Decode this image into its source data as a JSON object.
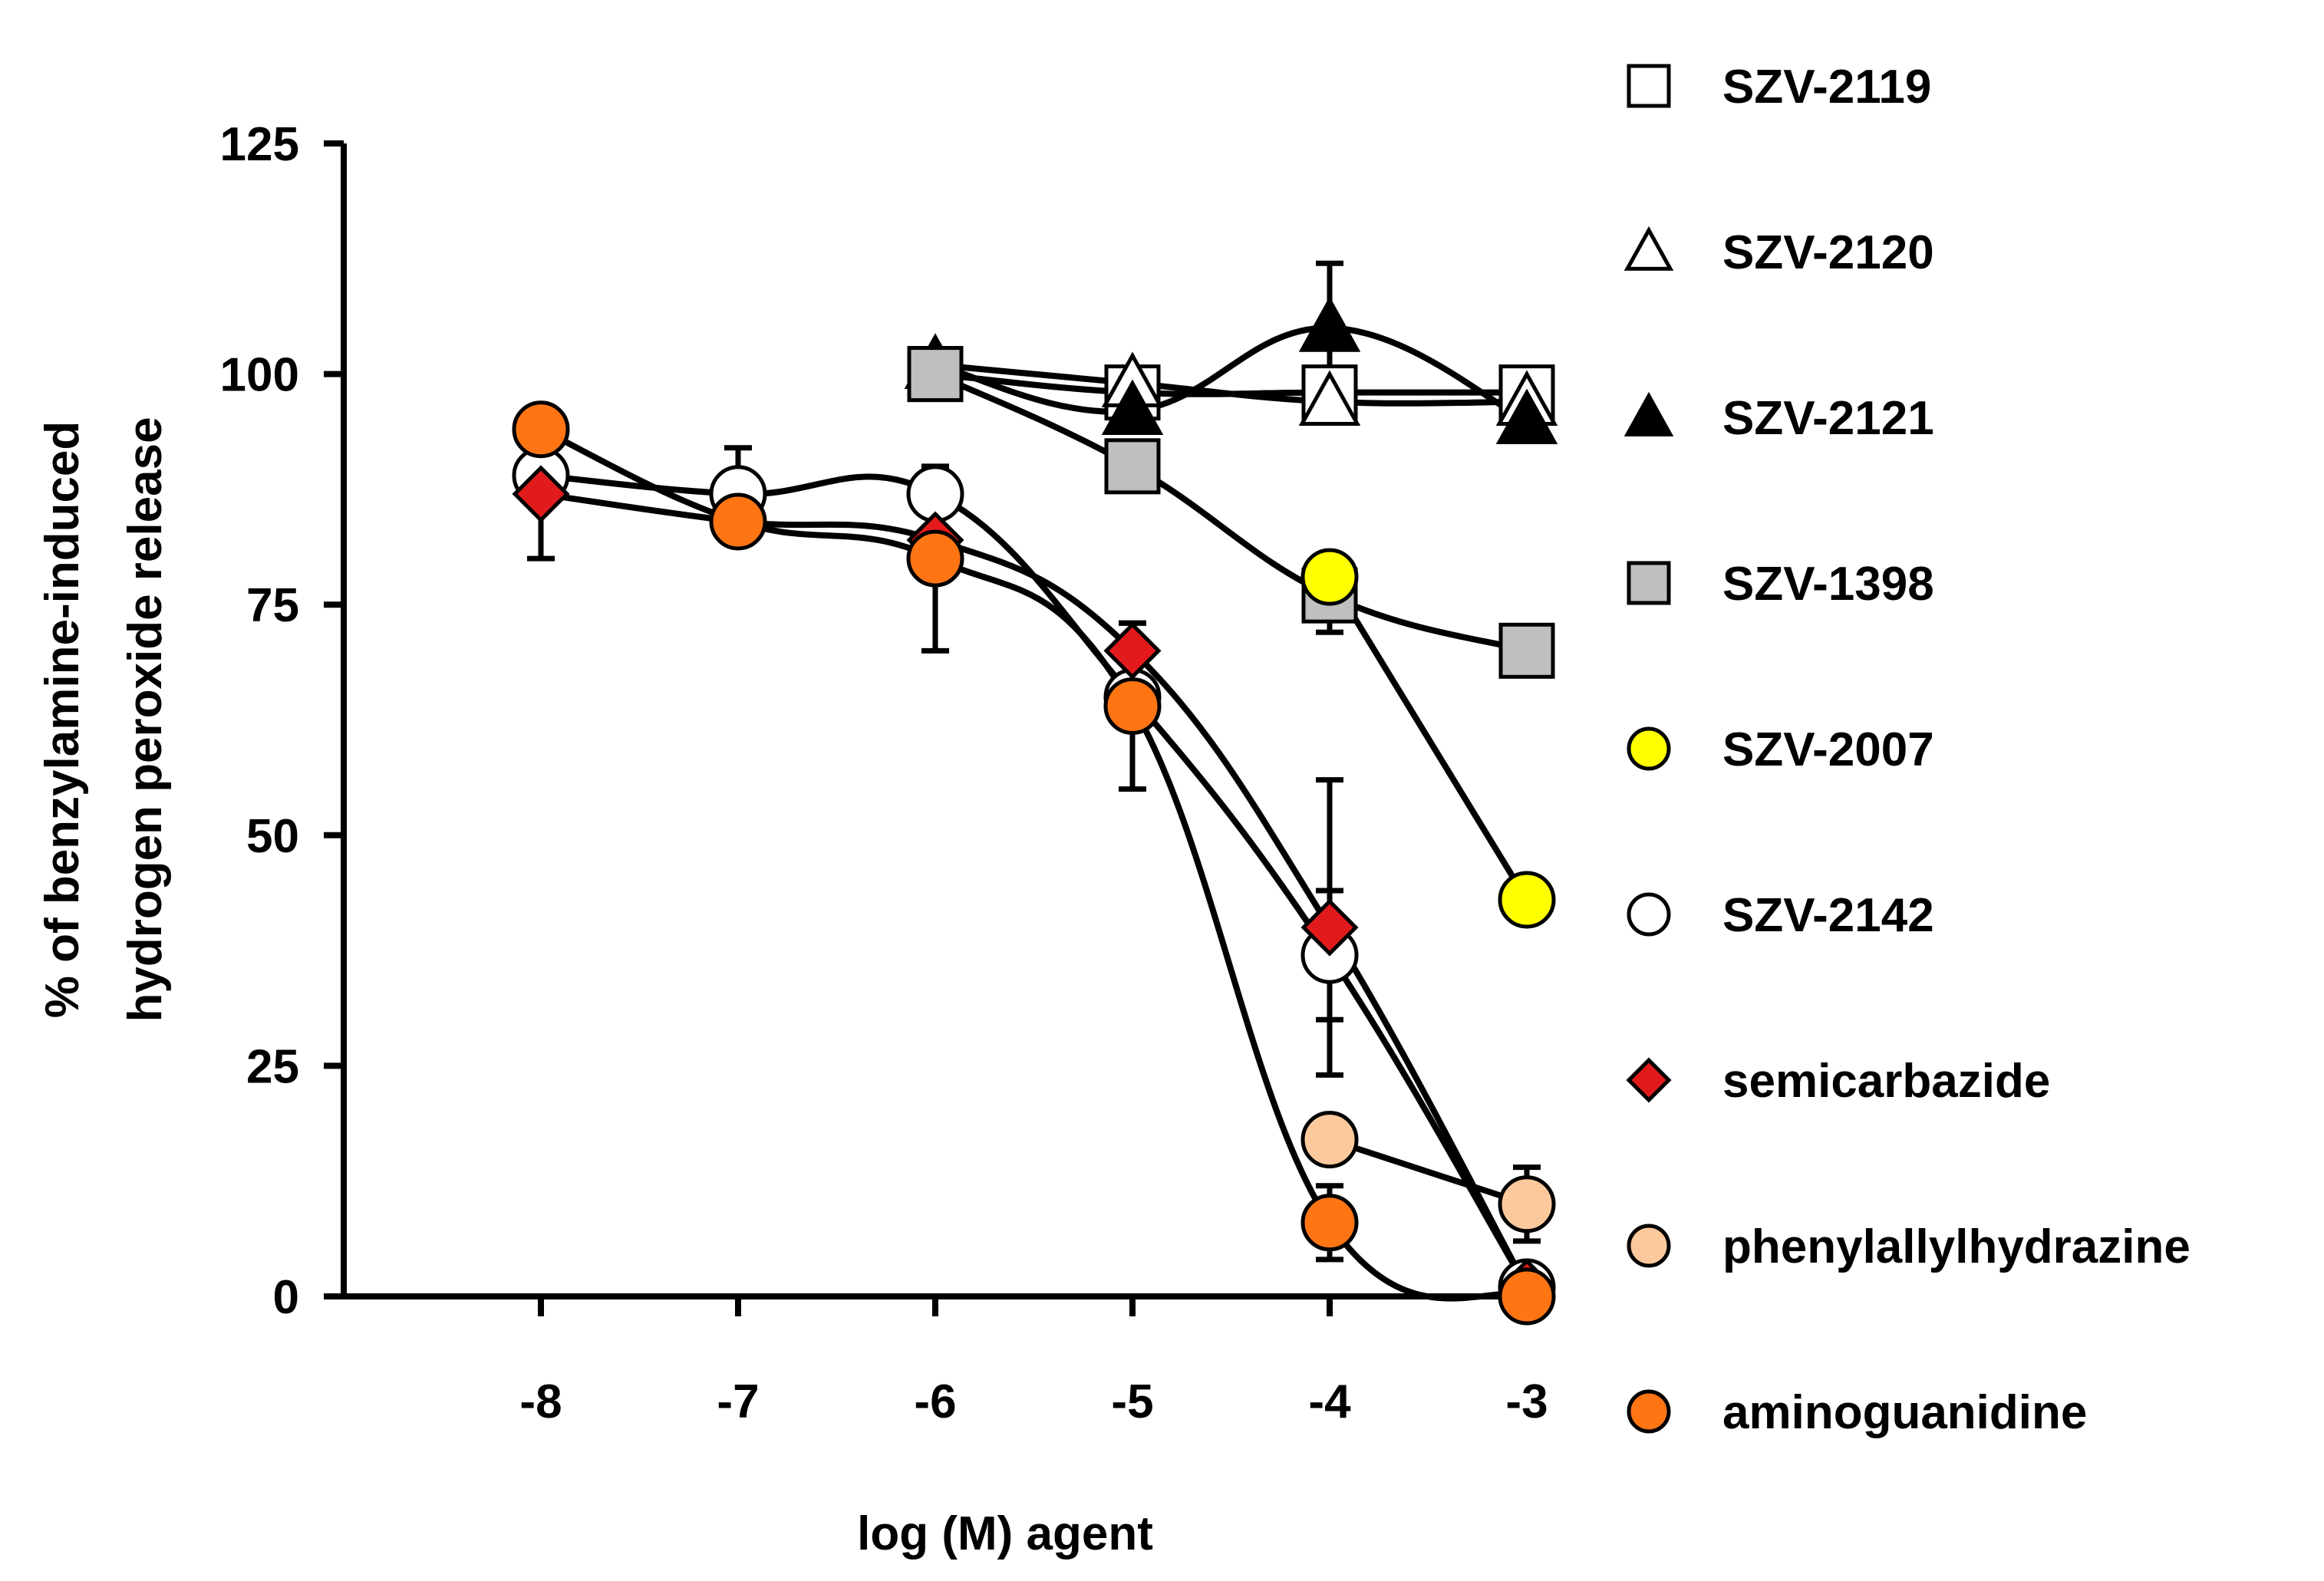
{
  "chart_data": {
    "type": "line",
    "title": "",
    "xlabel": "log (M) agent",
    "ylabel": [
      "% of benzylamine-induced",
      "hydrogen peroxide release"
    ],
    "xlim": [
      -9,
      -3
    ],
    "ylim": [
      0,
      125
    ],
    "x_ticks": [
      -8,
      -7,
      -6,
      -5,
      -4,
      -3
    ],
    "x_tick_labels": [
      "-8",
      "-7",
      "-6",
      "-5",
      "-4",
      "-3"
    ],
    "y_ticks": [
      0,
      25,
      50,
      75,
      100,
      125
    ],
    "y_tick_labels": [
      "0",
      "25",
      "50",
      "75",
      "100",
      "125"
    ],
    "grid": false,
    "legend_position": "right",
    "series": [
      {
        "name": "SZV-2119",
        "marker": "square",
        "fill": "#ffffff",
        "x": [
          -6,
          -5,
          -4,
          -3
        ],
        "y": [
          100,
          98,
          98,
          98
        ],
        "err": [
          0,
          0,
          0,
          0
        ]
      },
      {
        "name": "SZV-2120",
        "marker": "triangle",
        "fill": "#ffffff",
        "x": [
          -6,
          -5,
          -4,
          -3
        ],
        "y": [
          101,
          99,
          97,
          97
        ],
        "err": [
          0,
          0,
          0,
          0
        ]
      },
      {
        "name": "SZV-2121",
        "marker": "triangle",
        "fill": "#000000",
        "x": [
          -6,
          -5,
          -4,
          -3
        ],
        "y": [
          101,
          96,
          105,
          95
        ],
        "err": [
          0,
          0,
          7,
          0
        ]
      },
      {
        "name": "SZV-1398",
        "marker": "square",
        "fill": "#bfbfbf",
        "x": [
          -6,
          -5,
          -4,
          -3
        ],
        "y": [
          100,
          90,
          76,
          70
        ],
        "err": [
          0,
          0,
          4,
          0
        ]
      },
      {
        "name": "SZV-2007",
        "marker": "circle",
        "fill": "#ffff00",
        "x": [
          -4,
          -3
        ],
        "y": [
          78,
          43
        ],
        "err": [
          0,
          0
        ]
      },
      {
        "name": "SZV-2142",
        "marker": "circle",
        "fill": "#ffffff",
        "x": [
          -8,
          -7,
          -6,
          -5,
          -4,
          -3
        ],
        "y": [
          89,
          87,
          87,
          65,
          37,
          1
        ],
        "err": [
          0,
          5,
          0,
          0,
          7,
          0
        ]
      },
      {
        "name": "semicarbazide",
        "marker": "diamond",
        "fill": "#e31a1c",
        "x": [
          -8,
          -7,
          -6,
          -5,
          -4,
          -3
        ],
        "y": [
          87,
          84,
          82,
          70,
          40,
          1
        ],
        "err": [
          7,
          0,
          0,
          3,
          16,
          0
        ]
      },
      {
        "name": "phenylallylhydrazine",
        "marker": "circle",
        "fill": "#fcc99c",
        "x": [
          -4,
          -3
        ],
        "y": [
          17,
          10
        ],
        "err": [
          0,
          4
        ]
      },
      {
        "name": "aminoguanidine",
        "marker": "circle",
        "fill": "#ff7514",
        "x": [
          -8,
          -7,
          -6,
          -5,
          -4,
          -3
        ],
        "y": [
          94,
          84,
          80,
          64,
          8,
          0
        ],
        "err": [
          0,
          0,
          10,
          9,
          4,
          0
        ]
      }
    ]
  }
}
